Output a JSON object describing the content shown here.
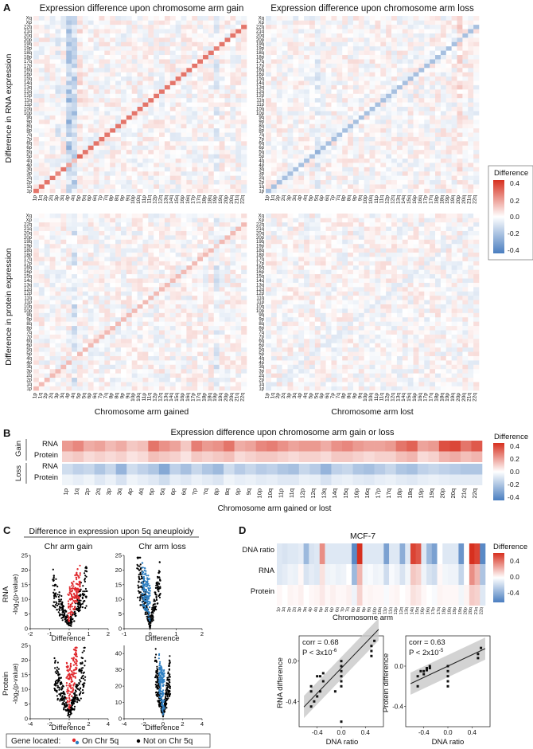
{
  "panels": {
    "A": {
      "label": "A",
      "title_gain": "Expression difference upon chromosome arm gain",
      "title_loss": "Expression difference upon chromosome arm loss",
      "ylabel_rna": "Difference in RNA expression",
      "ylabel_protein": "Difference in protein expression",
      "xlabel_gain": "Chromosome arm gained",
      "xlabel_loss": "Chromosome arm lost"
    },
    "B": {
      "label": "B",
      "title": "Expression difference upon chromosome arm gain or loss",
      "xlabel": "Chromosome arm gained or lost",
      "group_gain": "Gain",
      "group_loss": "Loss",
      "row_rna": "RNA",
      "row_protein": "Protein"
    },
    "C": {
      "label": "C",
      "title": "Difference in expression upon 5q aneuploidy",
      "col_gain": "Chr arm gain",
      "col_loss": "Chr arm loss",
      "row_rna": "RNA",
      "row_protein": "Protein",
      "ylabel_prefix": "-log",
      "ylabel_sub": "2",
      "ylabel_suffix": "(p-value)",
      "xlabel": "Difference",
      "legend_title": "Gene located:",
      "legend_on": "On Chr 5q",
      "legend_off": "Not on Chr 5q"
    },
    "D": {
      "label": "D",
      "title": "MCF-7",
      "row_dna": "DNA ratio",
      "row_rna": "RNA",
      "row_protein": "Protein",
      "xlabel": "Chromosome arm",
      "scatter_rna_corr": "corr = 0.68",
      "scatter_rna_p": "P < 3x10",
      "scatter_rna_p_exp": "-6",
      "scatter_rna_ylabel": "RNA difference",
      "scatter_protein_corr": "corr = 0.63",
      "scatter_protein_p": "P < 2x10",
      "scatter_protein_p_exp": "-5",
      "scatter_protein_ylabel": "Protein difference",
      "scatter_xlabel": "DNA ratio"
    }
  },
  "legend": {
    "title": "Difference",
    "ticks": [
      "0.4",
      "0.2",
      "0.0",
      "-0.2",
      "-0.4"
    ],
    "ticks_D": [
      "0.4",
      "0.0",
      "-0.4"
    ],
    "color_high": "#d7301f",
    "color_mid": "#ffffff",
    "color_low": "#4a7ec0"
  },
  "colors": {
    "gene_on": "#e0282d",
    "gene_off": "#000000",
    "gene_on_loss": "#2f7fc1",
    "trend_line": "#222222",
    "trend_band": "#c8c8c8"
  },
  "chart_data": [
    {
      "id": "A-heatmaps",
      "type": "heatmap",
      "description_rows": "Affected chromosome arm (y) vs chromosome arm gained/lost (x)",
      "arms_heatmap": [
        "1p",
        "1q",
        "2p",
        "2q",
        "3p",
        "3q",
        "4p",
        "4q",
        "5p",
        "5q",
        "6p",
        "6q",
        "7p",
        "7q",
        "8p",
        "8q",
        "9p",
        "9q",
        "10p",
        "10q",
        "11p",
        "11q",
        "12p",
        "12q",
        "13q",
        "14q",
        "15q",
        "16p",
        "16q",
        "17p",
        "17q",
        "18p",
        "18q",
        "19p",
        "19q",
        "20p",
        "20q",
        "21q",
        "22q",
        "Xp",
        "Xq"
      ],
      "x_tick_labels": [
        "1p",
        "1q",
        "2p",
        "2q",
        "3p",
        "3q",
        "4p",
        "4q",
        "5p",
        "5q",
        "6p",
        "6q",
        "7p",
        "7q",
        "8p",
        "8q",
        "9p",
        "9q",
        "10p",
        "10q",
        "11p",
        "11q",
        "12p",
        "12q",
        "13q",
        "14q",
        "15q",
        "16p",
        "16q",
        "17p",
        "17q",
        "18p",
        "18q",
        "19p",
        "19q",
        "20p",
        "20q",
        "21q",
        "22q"
      ],
      "y_tick_labels": [
        "1p",
        "1q",
        "2p",
        "2q",
        "3p",
        "3q",
        "4p",
        "4q",
        "5p",
        "5q",
        "6p",
        "6q",
        "7p",
        "7q",
        "8p",
        "8q",
        "9p",
        "9q",
        "10p",
        "10q",
        "11p",
        "11q",
        "12p",
        "12q",
        "13q",
        "14q",
        "15q",
        "16p",
        "16q",
        "17p",
        "17q",
        "18p",
        "18q",
        "19p",
        "19q",
        "20p",
        "20q",
        "21q",
        "22q",
        "Xp",
        "Xq"
      ],
      "diagonal_rna_gain": 0.3,
      "diagonal_rna_loss": -0.22,
      "diagonal_protein_gain": 0.15,
      "diagonal_protein_loss": -0.08,
      "value_range": [
        -0.4,
        0.4
      ]
    },
    {
      "id": "B-heatmap",
      "type": "heatmap",
      "arms": [
        "1p",
        "1q",
        "2p",
        "2q",
        "3p",
        "3q",
        "4p",
        "4q",
        "5p",
        "5q",
        "6p",
        "6q",
        "7p",
        "7q",
        "8p",
        "8q",
        "9p",
        "9q",
        "10p",
        "10q",
        "11p",
        "11q",
        "12p",
        "12q",
        "13q",
        "14q",
        "15q",
        "16p",
        "16q",
        "17p",
        "17q",
        "18p",
        "18q",
        "19p",
        "19q",
        "20p",
        "20q",
        "21q",
        "22q"
      ],
      "rows": [
        "Gain RNA",
        "Gain Protein",
        "Loss RNA",
        "Loss Protein"
      ],
      "values": [
        [
          0.22,
          0.26,
          0.18,
          0.2,
          0.15,
          0.18,
          0.12,
          0.14,
          0.3,
          0.24,
          0.2,
          0.12,
          0.28,
          0.22,
          0.24,
          0.3,
          0.18,
          0.2,
          0.26,
          0.28,
          0.24,
          0.2,
          0.22,
          0.22,
          0.18,
          0.24,
          0.26,
          0.22,
          0.2,
          0.2,
          0.22,
          0.3,
          0.34,
          0.2,
          0.22,
          0.38,
          0.4,
          0.3,
          0.36
        ],
        [
          0.1,
          0.12,
          0.08,
          0.1,
          0.08,
          0.1,
          0.06,
          0.08,
          0.14,
          0.12,
          0.1,
          0.06,
          0.12,
          0.1,
          0.12,
          0.14,
          0.08,
          0.1,
          0.12,
          0.12,
          0.1,
          0.08,
          0.1,
          0.1,
          0.08,
          0.12,
          0.12,
          0.1,
          0.08,
          0.1,
          0.1,
          0.14,
          0.16,
          0.08,
          0.1,
          0.16,
          0.18,
          0.14,
          0.16
        ],
        [
          -0.12,
          -0.16,
          -0.14,
          -0.2,
          -0.14,
          -0.26,
          -0.12,
          -0.16,
          -0.2,
          -0.3,
          -0.16,
          -0.22,
          -0.14,
          -0.2,
          -0.24,
          -0.12,
          -0.18,
          -0.14,
          -0.18,
          -0.16,
          -0.2,
          -0.22,
          -0.14,
          -0.18,
          -0.26,
          -0.16,
          -0.14,
          -0.2,
          -0.22,
          -0.18,
          -0.14,
          -0.2,
          -0.22,
          -0.16,
          -0.14,
          -0.16,
          -0.18,
          -0.2,
          -0.2
        ],
        [
          -0.04,
          -0.06,
          -0.04,
          -0.08,
          -0.05,
          -0.1,
          -0.04,
          -0.06,
          -0.08,
          -0.12,
          -0.06,
          -0.08,
          -0.05,
          -0.07,
          -0.09,
          -0.04,
          -0.06,
          -0.05,
          -0.07,
          -0.06,
          -0.08,
          -0.08,
          -0.05,
          -0.06,
          -0.1,
          -0.06,
          -0.05,
          -0.07,
          -0.08,
          -0.06,
          -0.05,
          -0.07,
          -0.08,
          -0.06,
          -0.05,
          -0.06,
          -0.07,
          -0.07,
          -0.07
        ]
      ],
      "value_range": [
        -0.4,
        0.4
      ]
    },
    {
      "id": "C-volcano",
      "type": "scatter",
      "subplots": [
        {
          "name": "RNA gain",
          "xlim": [
            -2,
            2
          ],
          "ylim": [
            0,
            25
          ],
          "xticks": [
            "-2",
            "-1",
            "0",
            "1",
            "2"
          ],
          "yticks": [
            "0",
            "5",
            "10",
            "15",
            "20",
            "25"
          ]
        },
        {
          "name": "RNA loss",
          "xlim": [
            -1,
            2
          ],
          "ylim": [
            0,
            25
          ],
          "xticks": [
            "-1",
            "0",
            "1",
            "2"
          ],
          "yticks": [
            "0",
            "5",
            "10",
            "15",
            "20",
            "25"
          ]
        },
        {
          "name": "Protein gain",
          "xlim": [
            -4,
            4
          ],
          "ylim": [
            0,
            25
          ],
          "xticks": [
            "-4",
            "-2",
            "0",
            "2",
            "4"
          ],
          "yticks": [
            "0",
            "5",
            "10",
            "15",
            "20",
            "25"
          ]
        },
        {
          "name": "Protein loss",
          "xlim": [
            -4,
            4
          ],
          "ylim": [
            0,
            45
          ],
          "xticks": [
            "-4",
            "-2",
            "0",
            "2",
            "4"
          ],
          "yticks": [
            "0",
            "10",
            "20",
            "30",
            "40"
          ]
        }
      ]
    },
    {
      "id": "D-heatmap",
      "type": "heatmap",
      "arms": [
        "1p",
        "1q",
        "2p",
        "2q",
        "3p",
        "3q",
        "4p",
        "4q",
        "5p",
        "5q",
        "6p",
        "6q",
        "7p",
        "7q",
        "8p",
        "8q",
        "9p",
        "9q",
        "10p",
        "10q",
        "11p",
        "11q",
        "12p",
        "12q",
        "13q",
        "14q",
        "15q",
        "16p",
        "16q",
        "17p",
        "17q",
        "18p",
        "18q",
        "19p",
        "19q",
        "20p",
        "20q",
        "21q",
        "22q"
      ],
      "rows": [
        "DNA ratio",
        "RNA",
        "Protein"
      ],
      "values": [
        [
          -0.1,
          -0.12,
          -0.1,
          -0.1,
          -0.08,
          -0.3,
          -0.12,
          -0.1,
          0.3,
          -0.1,
          -0.1,
          -0.1,
          -0.1,
          -0.1,
          -0.5,
          0.55,
          -0.1,
          -0.1,
          -0.1,
          -0.1,
          -0.4,
          -0.1,
          -0.1,
          -0.35,
          -0.1,
          0.5,
          0.45,
          -0.1,
          -0.3,
          -0.4,
          0.0,
          -0.1,
          -0.1,
          -0.1,
          -0.45,
          0.0,
          0.55,
          0.5,
          -0.5
        ],
        [
          -0.1,
          -0.08,
          -0.05,
          -0.06,
          0.02,
          -0.12,
          -0.08,
          -0.1,
          0.08,
          -0.05,
          -0.04,
          -0.06,
          -0.05,
          0.0,
          -0.3,
          0.2,
          -0.04,
          -0.02,
          -0.05,
          -0.04,
          -0.15,
          -0.02,
          -0.05,
          -0.12,
          -0.04,
          0.15,
          0.12,
          -0.05,
          -0.12,
          -0.15,
          0.02,
          -0.04,
          -0.05,
          -0.05,
          -0.18,
          0.0,
          0.3,
          0.2,
          -0.25
        ],
        [
          0.02,
          0.0,
          0.03,
          0.02,
          0.04,
          0.0,
          0.02,
          0.03,
          0.06,
          0.02,
          0.04,
          0.02,
          0.02,
          0.04,
          -0.05,
          0.12,
          0.02,
          0.03,
          0.02,
          0.02,
          -0.02,
          0.02,
          0.03,
          0.0,
          0.02,
          0.08,
          0.06,
          0.02,
          0.0,
          -0.02,
          0.03,
          0.02,
          0.02,
          0.02,
          -0.04,
          0.03,
          0.14,
          0.12,
          -0.1
        ]
      ],
      "value_range": [
        -0.5,
        0.5
      ]
    },
    {
      "id": "D-scatter-rna",
      "type": "scatter",
      "xlabel": "DNA ratio",
      "ylabel": "RNA difference",
      "xlim": [
        -0.7,
        0.7
      ],
      "ylim": [
        -0.65,
        0.25
      ],
      "xticks": [
        "-0.4",
        "0.0",
        "0.4"
      ],
      "yticks": [
        "0.0",
        "-0.4"
      ],
      "x": [
        -0.5,
        -0.5,
        -0.4,
        -0.4,
        -0.3,
        -0.3,
        -0.45,
        -0.35,
        0.0,
        0.0,
        0.0,
        0.0,
        0.0,
        0.0,
        -0.1,
        0.5,
        0.5,
        0.5,
        0.55,
        -0.35,
        -0.5,
        0.0
      ],
      "y": [
        -0.3,
        -0.45,
        -0.35,
        -0.15,
        -0.12,
        -0.2,
        -0.4,
        -0.3,
        -0.05,
        -0.1,
        -0.15,
        -0.25,
        0.0,
        -0.6,
        -0.3,
        0.15,
        0.05,
        0.1,
        0.2,
        -0.15,
        -0.25,
        -0.2
      ],
      "fit": {
        "slope": 0.62,
        "intercept": -0.07
      }
    },
    {
      "id": "D-scatter-protein",
      "type": "scatter",
      "xlabel": "DNA ratio",
      "ylabel": "Protein difference",
      "xlim": [
        -0.7,
        0.7
      ],
      "ylim": [
        -0.6,
        0.3
      ],
      "xticks": [
        "-0.4",
        "0.0",
        "0.4"
      ],
      "yticks": [
        "0.0",
        "-0.4"
      ],
      "x": [
        -0.5,
        -0.5,
        -0.45,
        -0.4,
        -0.35,
        -0.3,
        -0.3,
        0.0,
        0.0,
        0.0,
        0.0,
        0.0,
        0.5,
        0.5,
        0.55,
        -0.4,
        -0.35
      ],
      "y": [
        -0.1,
        -0.2,
        -0.05,
        -0.08,
        -0.04,
        -0.02,
        0.0,
        0.0,
        -0.05,
        -0.1,
        -0.15,
        -0.2,
        0.12,
        0.08,
        0.18,
        -0.05,
        -0.02
      ],
      "fit": {
        "slope": 0.28,
        "intercept": 0.0
      }
    }
  ]
}
